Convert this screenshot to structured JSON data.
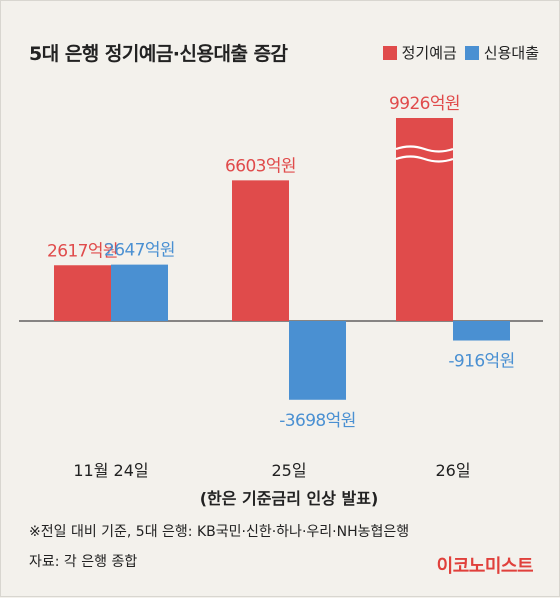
{
  "title": "5대 은행 정기예금·신용대출 증감",
  "legend": [
    {
      "label": "정기예금",
      "color": "#e04b4b"
    },
    {
      "label": "신용대출",
      "color": "#4a90d2"
    }
  ],
  "chart_data": {
    "type": "bar",
    "categories": [
      "11월 24일",
      "25일",
      "26일"
    ],
    "category_subtitle": "(한은 기준금리 인상 발표)",
    "series": [
      {
        "name": "정기예금",
        "color": "#e04b4b",
        "values": [
          2617,
          6603,
          9926
        ],
        "labels": [
          "2617억원",
          "6603억원",
          "9926억원"
        ]
      },
      {
        "name": "신용대출",
        "color": "#4a90d2",
        "values": [
          2647,
          -3698,
          -916
        ],
        "labels": [
          "2647억원",
          "-3698억원",
          "-916억원"
        ]
      }
    ],
    "axis_break_on": "9926억원",
    "label_color": "#e04b4b",
    "label_color_secondary": "#4a90d2"
  },
  "notes": {
    "line1": "※전일 대비 기준,  5대 은행: KB국민·신한·하나·우리·NH농협은행",
    "line2": "자료: 각 은행 종합"
  },
  "brand": "이코노미스트"
}
